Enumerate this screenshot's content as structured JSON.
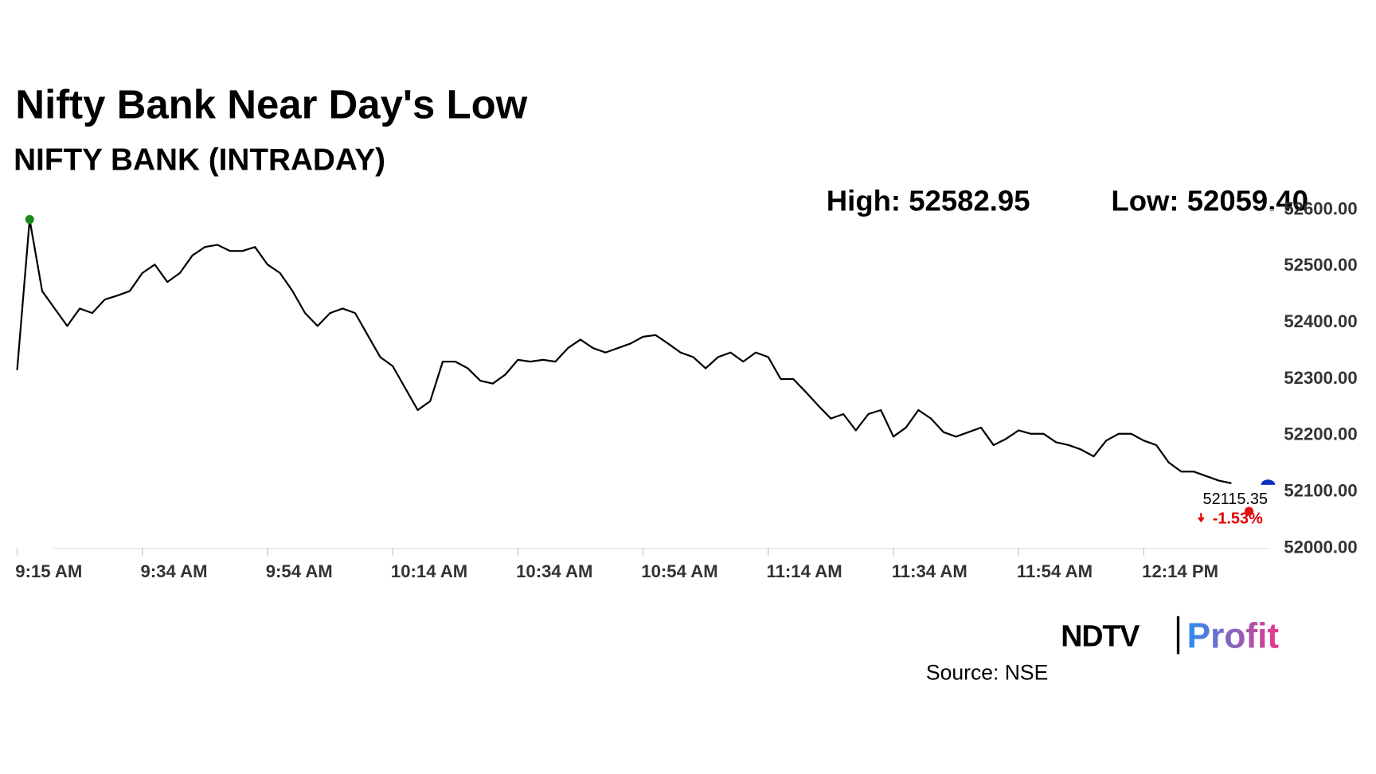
{
  "chart_data": {
    "type": "line",
    "title": "Nifty Bank Near Day's Low",
    "subtitle": "NIFTY BANK (INTRADAY)",
    "high_label": "High: 52582.95",
    "low_label": "Low: 52059.40",
    "last_label": "52115.35",
    "change_label": "-1.53%",
    "source": "Source: NSE",
    "logo": [
      "NDTV",
      "Profit"
    ],
    "color": "#000000",
    "values": [
      52316,
      52582.95,
      52456,
      52425,
      52394,
      52425,
      52417,
      52441,
      52448,
      52456,
      52488,
      52503,
      52472,
      52488,
      52519,
      52534,
      52538,
      52527,
      52527,
      52534,
      52503,
      52488,
      52456,
      52417,
      52394,
      52417,
      52425,
      52417,
      52378,
      52339,
      52323,
      52284,
      52245,
      52261,
      52331,
      52331,
      52319,
      52297,
      52292,
      52308,
      52334,
      52331,
      52334,
      52331,
      52355,
      52370,
      52355,
      52347,
      52355,
      52363,
      52375,
      52378,
      52363,
      52347,
      52339,
      52319,
      52339,
      52347,
      52331,
      52347,
      52339,
      52300,
      52300,
      52277,
      52253,
      52230,
      52238,
      52209,
      52238,
      52245,
      52198,
      52214,
      52245,
      52230,
      52206,
      52198,
      52206,
      52214,
      52183,
      52194,
      52209,
      52203,
      52203,
      52188,
      52183,
      52175,
      52163,
      52191,
      52203,
      52203,
      52191,
      52183,
      52152,
      52136,
      52136,
      52128,
      52120,
      52115.35
    ],
    "xlim": [
      0,
      100
    ],
    "xticks": [
      {
        "value": 0,
        "label": "9:15 AM"
      },
      {
        "value": 10,
        "label": "9:34 AM"
      },
      {
        "value": 20,
        "label": "9:54 AM"
      },
      {
        "value": 30,
        "label": "10:14 AM"
      },
      {
        "value": 40,
        "label": "10:34 AM"
      },
      {
        "value": 50,
        "label": "10:54 AM"
      },
      {
        "value": 60,
        "label": "11:14 AM"
      },
      {
        "value": 70,
        "label": "11:34 AM"
      },
      {
        "value": 80,
        "label": "11:54 AM"
      },
      {
        "value": 90,
        "label": "12:14 PM"
      }
    ],
    "ylim": [
      52000,
      52600
    ],
    "yticks": [
      {
        "value": 52000,
        "label": "52000.00"
      },
      {
        "value": 52100,
        "label": "52100.00"
      },
      {
        "value": 52200,
        "label": "52200.00"
      },
      {
        "value": 52300,
        "label": "52300.00"
      },
      {
        "value": 52400,
        "label": "52400.00"
      },
      {
        "value": 52500,
        "label": "52500.00"
      },
      {
        "value": 52600,
        "label": "52600.00"
      }
    ]
  }
}
